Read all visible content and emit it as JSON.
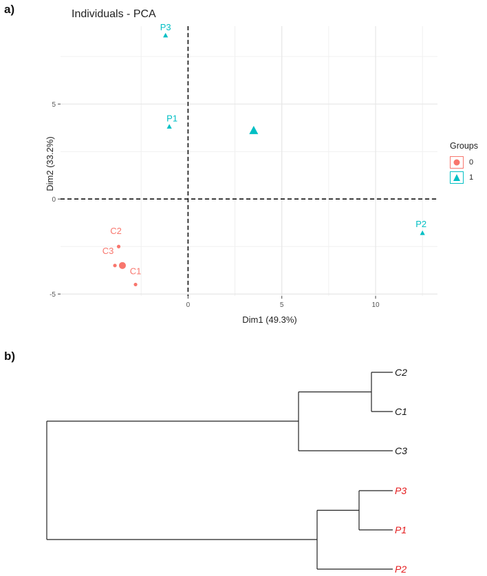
{
  "panels": {
    "a_label": "a)",
    "b_label": "b)"
  },
  "colors": {
    "group0": "#f8766d",
    "group1": "#00bfc4",
    "dendro_red": "#e41a1c",
    "dendro_black": "#111111"
  },
  "legend": {
    "title": "Groups",
    "items": [
      {
        "label": "0",
        "color": "#f8766d",
        "shape": "circle"
      },
      {
        "label": "1",
        "color": "#00bfc4",
        "shape": "triangle"
      }
    ]
  },
  "chart_data": [
    {
      "type": "scatter",
      "title": "Individuals - PCA",
      "xlabel": "Dim1 (49.3%)",
      "ylabel": "Dim2 (33.2%)",
      "xlim": [
        -6.8,
        13.3
      ],
      "ylim": [
        -5.1,
        9.1
      ],
      "xticks": [
        0,
        5,
        10
      ],
      "yticks": [
        -5,
        0,
        5
      ],
      "grid": true,
      "reference_lines": {
        "x": 0,
        "y": 0,
        "style": "dashed"
      },
      "series": [
        {
          "name": "0",
          "color": "#f8766d",
          "points": [
            {
              "label": "C1",
              "x": -2.8,
              "y": -4.5
            },
            {
              "label": "C2",
              "x": -3.7,
              "y": -2.5
            },
            {
              "label": "C3",
              "x": -3.9,
              "y": -3.5
            }
          ],
          "centroid": {
            "x": -3.5,
            "y": -3.5
          }
        },
        {
          "name": "1",
          "color": "#00bfc4",
          "points": [
            {
              "label": "P1",
              "x": -1.0,
              "y": 3.8
            },
            {
              "label": "P2",
              "x": 12.5,
              "y": -1.8
            },
            {
              "label": "P3",
              "x": -1.2,
              "y": 8.6
            }
          ],
          "centroid": {
            "x": 3.5,
            "y": 3.6
          }
        }
      ],
      "legend_position": "right"
    },
    {
      "type": "dendrogram",
      "leaves": [
        {
          "label": "C2",
          "color": "#111111"
        },
        {
          "label": "C1",
          "color": "#111111"
        },
        {
          "label": "C3",
          "color": "#111111"
        },
        {
          "label": "P3",
          "color": "#e41a1c"
        },
        {
          "label": "P1",
          "color": "#e41a1c"
        },
        {
          "label": "P2",
          "color": "#e41a1c"
        }
      ]
    }
  ]
}
